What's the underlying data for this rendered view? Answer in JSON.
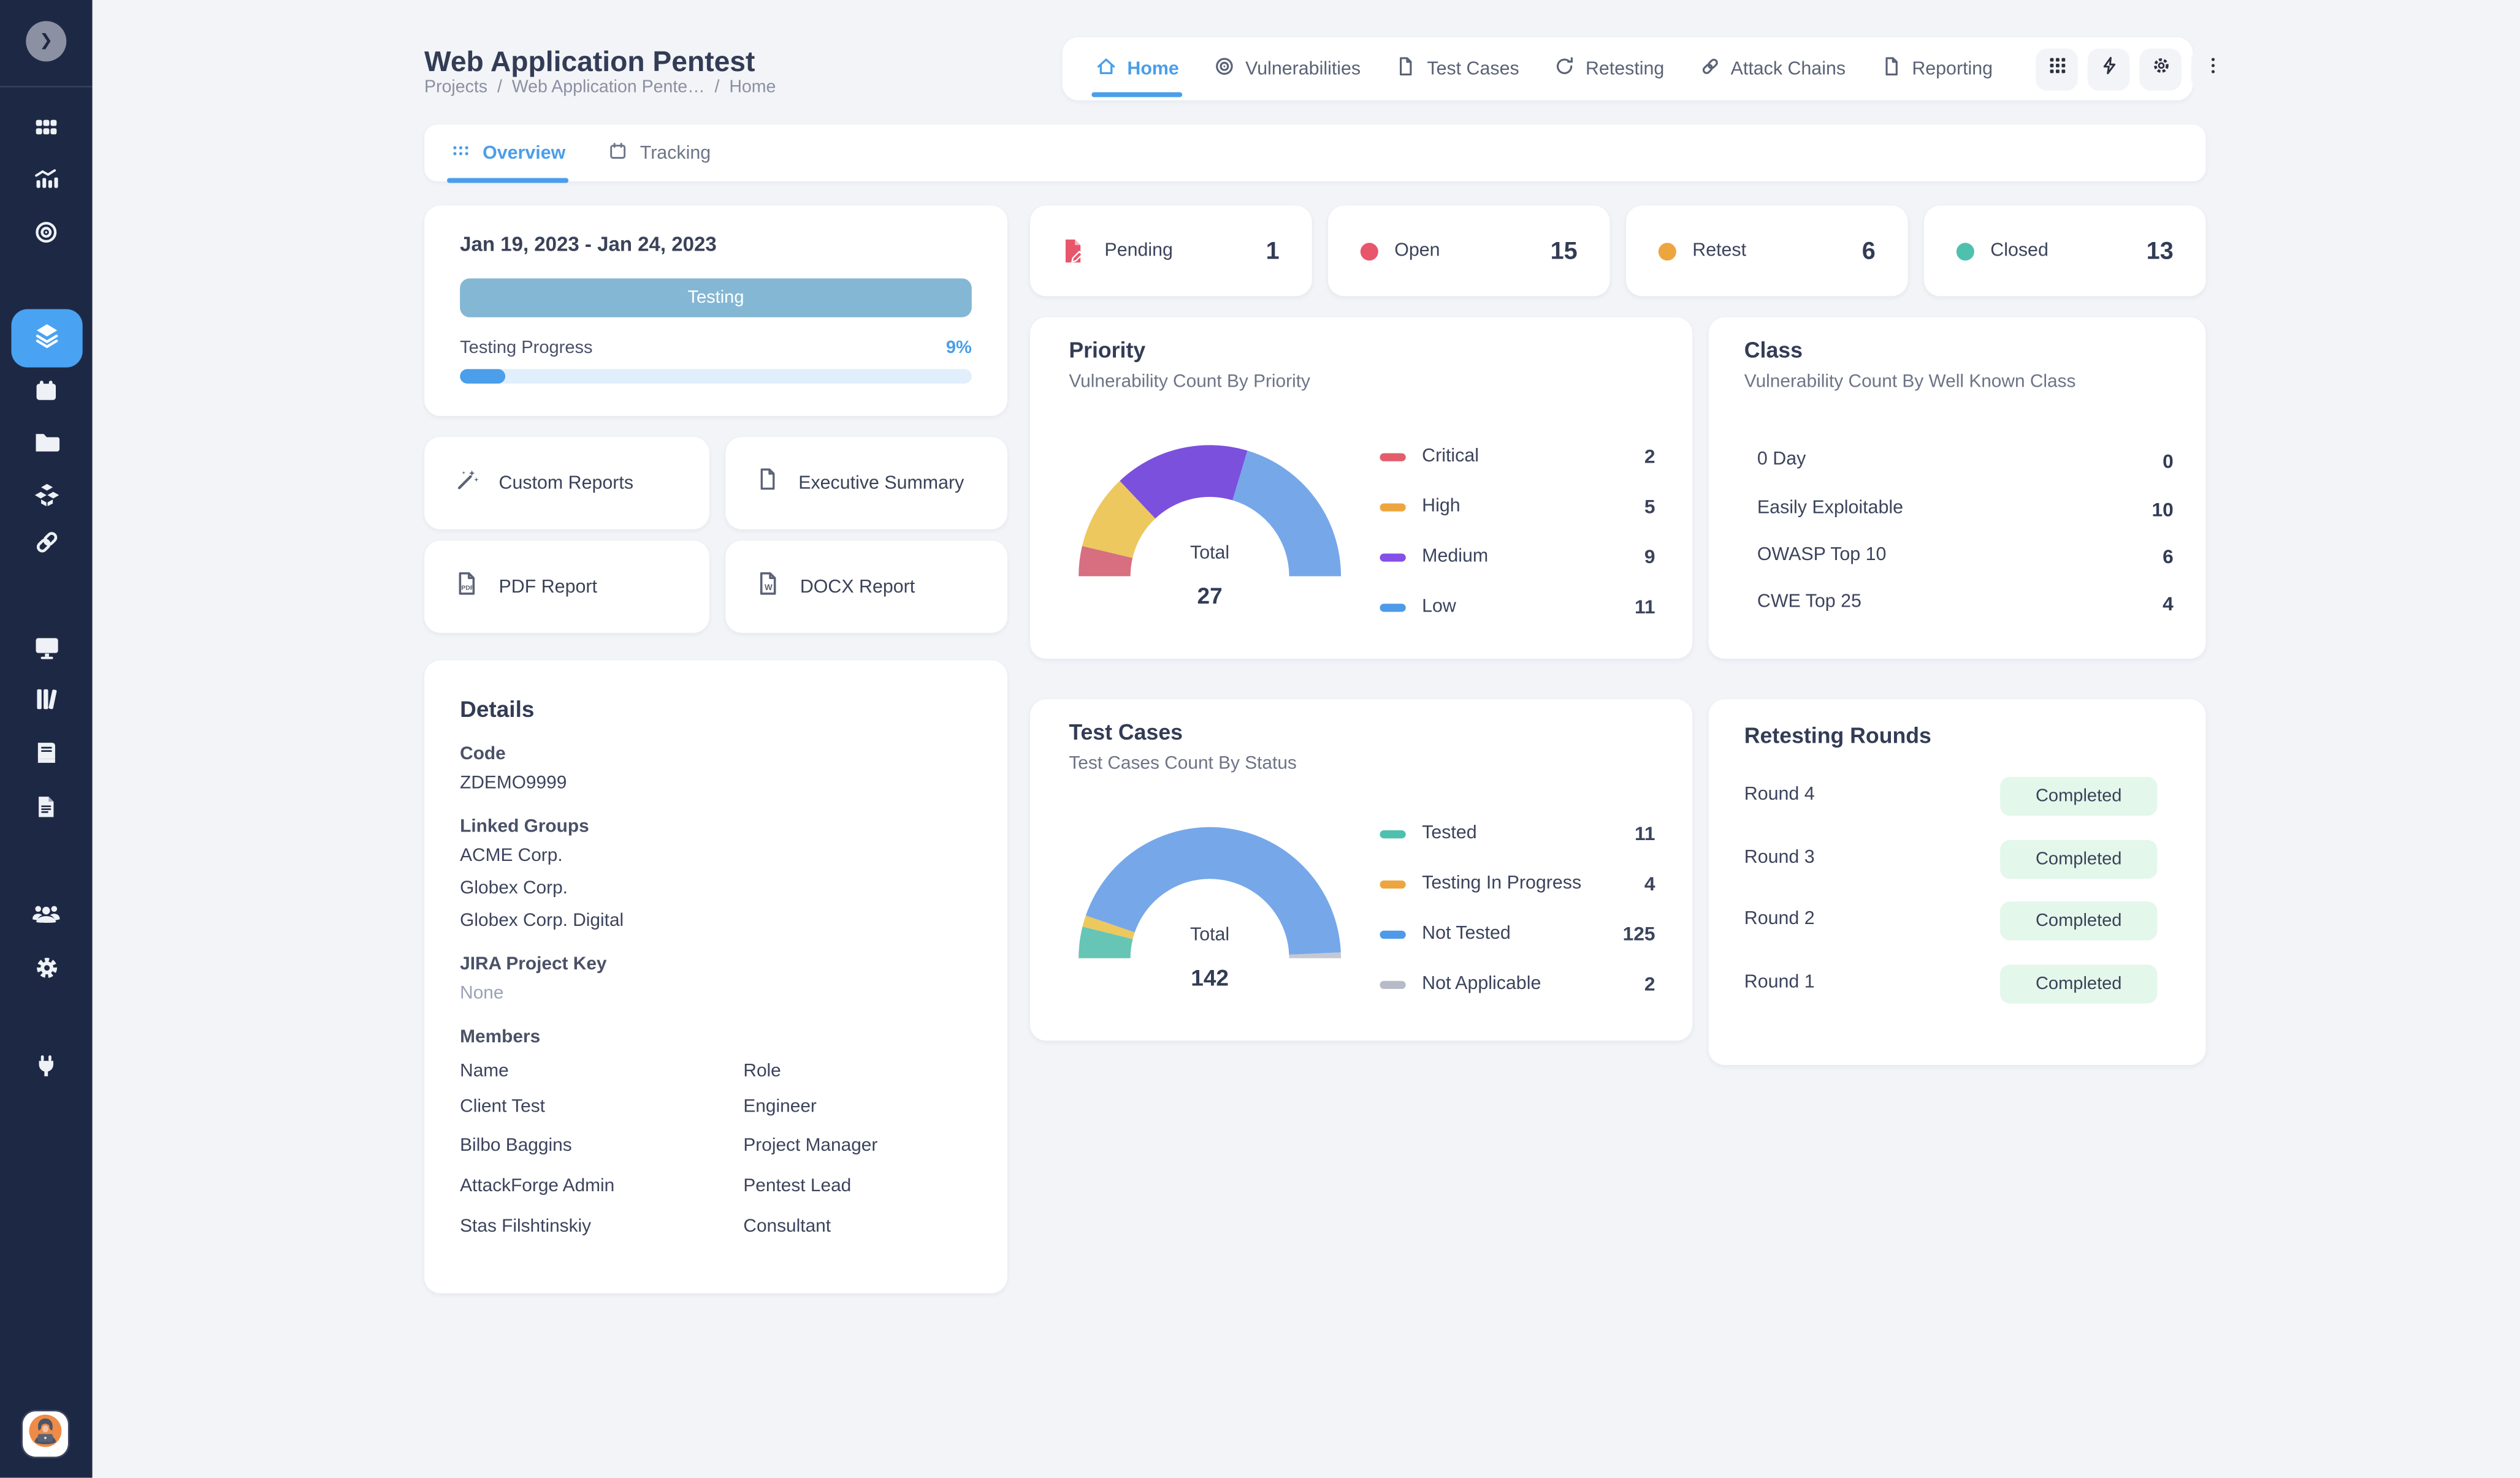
{
  "sidebar": {
    "icons": [
      "chevron-right",
      "apps-grid",
      "analytics",
      "target",
      "layers",
      "calendar",
      "folder",
      "cubes",
      "link",
      "monitor",
      "library",
      "book",
      "document",
      "users",
      "settings",
      "plug"
    ],
    "active_item": "layers",
    "avatar": "hacker-avatar"
  },
  "header": {
    "title": "Web Application Pentest",
    "breadcrumb": [
      "Projects",
      "Web Application Pente…",
      "Home"
    ],
    "breadcrumb_separator": "/",
    "nav": [
      {
        "label": "Home",
        "icon": "home"
      },
      {
        "label": "Vulnerabilities",
        "icon": "target"
      },
      {
        "label": "Test Cases",
        "icon": "file"
      },
      {
        "label": "Retesting",
        "icon": "refresh"
      },
      {
        "label": "Attack Chains",
        "icon": "link"
      },
      {
        "label": "Reporting",
        "icon": "file"
      }
    ],
    "actions": [
      "apps-grid",
      "lightning",
      "settings",
      "more"
    ]
  },
  "tabs": [
    {
      "label": "Overview",
      "icon": "grid-dots"
    },
    {
      "label": "Tracking",
      "icon": "calendar"
    }
  ],
  "schedule": {
    "date_range": "Jan 19, 2023 - Jan 24, 2023",
    "phase": "Testing",
    "phase_bg": "#84b7d4",
    "progress_label": "Testing Progress",
    "progress_value": "9%",
    "accent": "#4a9eea"
  },
  "status_cards": [
    {
      "label": "Pending",
      "value": "1",
      "icon": "pending-file",
      "color": "#e8566b"
    },
    {
      "label": "Open",
      "value": "15",
      "color": "#e8566b"
    },
    {
      "label": "Retest",
      "value": "6",
      "color": "#eda63f"
    },
    {
      "label": "Closed",
      "value": "13",
      "color": "#4fc0ad"
    }
  ],
  "reports": [
    {
      "label": "Custom Reports",
      "icon": "magic-wand"
    },
    {
      "label": "Executive Summary",
      "icon": "file"
    },
    {
      "label": "PDF Report",
      "icon": "pdf-file"
    },
    {
      "label": "DOCX Report",
      "icon": "docx-file"
    }
  ],
  "details": {
    "heading": "Details",
    "code_label": "Code",
    "code": "ZDEMO9999",
    "linked_groups_label": "Linked Groups",
    "linked_groups": [
      "ACME Corp.",
      "Globex Corp.",
      "Globex Corp. Digital"
    ],
    "jira_label": "JIRA Project Key",
    "jira_value": "None",
    "members_label": "Members",
    "name_header": "Name",
    "role_header": "Role",
    "members": [
      {
        "name": "Client Test",
        "role": "Engineer"
      },
      {
        "name": "Bilbo Baggins",
        "role": "Project Manager"
      },
      {
        "name": "AttackForge Admin",
        "role": "Pentest Lead"
      },
      {
        "name": "Stas Filshtinskiy",
        "role": "Consultant"
      }
    ]
  },
  "priority": {
    "title": "Priority",
    "subtitle": "Vulnerability Count By Priority",
    "total_label": "Total",
    "total": "27",
    "legend": [
      {
        "label": "Critical",
        "value": "2",
        "color": "#e45d6b"
      },
      {
        "label": "High",
        "value": "5",
        "color": "#eda63f"
      },
      {
        "label": "Medium",
        "value": "9",
        "color": "#8550e8"
      },
      {
        "label": "Low",
        "value": "11",
        "color": "#4e9ae8"
      }
    ]
  },
  "well_known_class": {
    "title": "Class",
    "subtitle": "Vulnerability Count By Well Known Class",
    "rows": [
      {
        "label": "0 Day",
        "value": "0"
      },
      {
        "label": "Easily Exploitable",
        "value": "10"
      },
      {
        "label": "OWASP Top 10",
        "value": "6"
      },
      {
        "label": "CWE Top 25",
        "value": "4"
      }
    ]
  },
  "test_cases": {
    "title": "Test Cases",
    "subtitle": "Test Cases Count By Status",
    "total_label": "Total",
    "total": "142",
    "legend": [
      {
        "label": "Tested",
        "value": "11",
        "color": "#4fc0ad"
      },
      {
        "label": "Testing In Progress",
        "value": "4",
        "color": "#eda63f"
      },
      {
        "label": "Not Tested",
        "value": "125",
        "color": "#4e9ae8"
      },
      {
        "label": "Not Applicable",
        "value": "2",
        "color": "#b7bbc8"
      }
    ]
  },
  "retesting": {
    "title": "Retesting Rounds",
    "completed_bg": "#e3f7eb",
    "rounds": [
      {
        "label": "Round 4",
        "status": "Completed"
      },
      {
        "label": "Round 3",
        "status": "Completed"
      },
      {
        "label": "Round 2",
        "status": "Completed"
      },
      {
        "label": "Round 1",
        "status": "Completed"
      }
    ]
  },
  "chart_data": [
    {
      "type": "gauge",
      "title": "Priority",
      "subtitle": "Vulnerability Count By Priority",
      "categories": [
        "Critical",
        "High",
        "Medium",
        "Low"
      ],
      "values": [
        2,
        5,
        9,
        11
      ],
      "colors": [
        "#d76f80",
        "#ecc85e",
        "#7b50dc",
        "#76a7e9"
      ],
      "total_label": "Total",
      "total": 27,
      "legend_position": "right"
    },
    {
      "type": "gauge",
      "title": "Test Cases",
      "subtitle": "Test Cases Count By Status",
      "categories": [
        "Tested",
        "Testing In Progress",
        "Not Tested",
        "Not Applicable"
      ],
      "values": [
        11,
        4,
        125,
        2
      ],
      "colors": [
        "#66c5b4",
        "#ecc85e",
        "#76a7e9",
        "#c5c8d2"
      ],
      "total_label": "Total",
      "total": 142,
      "legend_position": "right"
    }
  ]
}
